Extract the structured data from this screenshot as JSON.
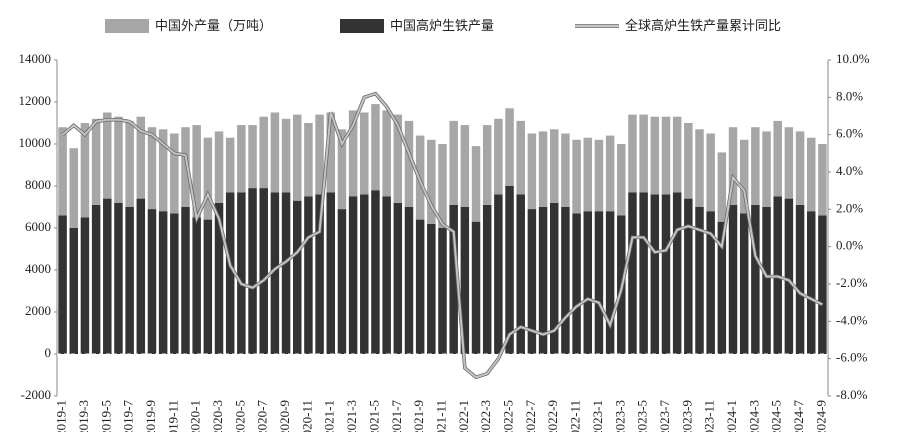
{
  "chart_data": {
    "type": "bar",
    "stacked": true,
    "categories": [
      "2019-1",
      null,
      "2019-3",
      null,
      "2019-5",
      null,
      "2019-7",
      null,
      "2019-9",
      null,
      "2019-11",
      null,
      "2020-1",
      null,
      "2020-3",
      null,
      "2020-5",
      null,
      "2020-7",
      null,
      "2020-9",
      null,
      "2020-11",
      null,
      "2021-1",
      null,
      "2021-3",
      null,
      "2021-5",
      null,
      "2021-7",
      null,
      "2021-9",
      null,
      "2021-11",
      null,
      "2022-1",
      null,
      "2022-3",
      null,
      "2022-5",
      null,
      "2022-7",
      null,
      "2022-9",
      null,
      "2022-11",
      null,
      "2023-1",
      null,
      "2023-3",
      null,
      "2023-5",
      null,
      "2023-7",
      null,
      "2023-9",
      null,
      "2023-11",
      null,
      "2024-1",
      null,
      "2024-3",
      null,
      "2024-5",
      null,
      "2024-7",
      null,
      "2024-9"
    ],
    "series": [
      {
        "name": "中国外产量（万吨）",
        "color": "#a6a6a6",
        "type": "bar",
        "values": [
          4200,
          3800,
          4500,
          4100,
          4100,
          4100,
          4100,
          3900,
          3900,
          3900,
          3800,
          3800,
          4400,
          3900,
          3400,
          2600,
          3200,
          3000,
          3400,
          3800,
          3500,
          4100,
          3500,
          3800,
          3800,
          3800,
          4100,
          3900,
          4100,
          4100,
          4200,
          4100,
          4000,
          4000,
          4000,
          4000,
          3900,
          3600,
          3800,
          3600,
          3700,
          3500,
          3600,
          3600,
          3500,
          3500,
          3500,
          3500,
          3400,
          3600,
          3400,
          3700,
          3700,
          3700,
          3700,
          3600,
          3600,
          3700,
          3700,
          3300,
          3700,
          3500,
          3700,
          3600,
          3600,
          3400,
          3500,
          3500,
          3400
        ]
      },
      {
        "name": "中国高炉生铁产量",
        "color": "#333333",
        "type": "bar",
        "values": [
          6600,
          6000,
          6500,
          7100,
          7400,
          7200,
          7000,
          7400,
          6900,
          6800,
          6700,
          7000,
          6500,
          6400,
          7200,
          7700,
          7700,
          7900,
          7900,
          7700,
          7700,
          7300,
          7500,
          7600,
          7700,
          6900,
          7500,
          7600,
          7800,
          7500,
          7200,
          7000,
          6400,
          6200,
          6000,
          7100,
          7000,
          6300,
          7100,
          7600,
          8000,
          7600,
          6900,
          7000,
          7200,
          7000,
          6700,
          6800,
          6800,
          6800,
          6600,
          7700,
          7700,
          7600,
          7600,
          7700,
          7400,
          7000,
          6800,
          6300,
          7100,
          6700,
          7100,
          7000,
          7500,
          7400,
          7100,
          6800,
          6600
        ]
      },
      {
        "name": "全球高炉生铁产量累计同比",
        "color": "#c4c4c4",
        "type": "line",
        "axis": "y2",
        "values": [
          6.0,
          6.5,
          6.0,
          6.7,
          6.8,
          6.8,
          6.7,
          6.2,
          6.0,
          5.5,
          5.0,
          4.9,
          1.5,
          2.8,
          1.5,
          -1.0,
          -2.0,
          -2.2,
          -1.8,
          -1.2,
          -0.8,
          -0.3,
          0.5,
          0.8,
          7.2,
          5.5,
          6.5,
          8.0,
          8.2,
          7.5,
          6.5,
          5.0,
          3.5,
          2.2,
          1.2,
          0.8,
          -6.5,
          -7.0,
          -6.8,
          -6.0,
          -4.7,
          -4.3,
          -4.5,
          -4.7,
          -4.5,
          -3.8,
          -3.2,
          -2.8,
          -3.0,
          -4.2,
          -2.3,
          0.5,
          0.5,
          -0.3,
          -0.2,
          0.9,
          1.1,
          0.9,
          0.7,
          0.0,
          3.7,
          3.0,
          -0.5,
          -1.6,
          -1.6,
          -1.8,
          -2.5,
          -2.8,
          -3.1
        ]
      }
    ],
    "ylim": [
      -2000,
      14000
    ],
    "yticks": [
      -2000,
      0,
      2000,
      4000,
      6000,
      8000,
      10000,
      12000,
      14000
    ],
    "y2lim": [
      -8,
      10
    ],
    "y2ticks": [
      {
        "value": -8,
        "label": "-8.0%"
      },
      {
        "value": -6,
        "label": "-6.0%"
      },
      {
        "value": -4,
        "label": "-4.0%"
      },
      {
        "value": -2,
        "label": "-2.0%"
      },
      {
        "value": 0,
        "label": "0.0%"
      },
      {
        "value": 2,
        "label": "2.0%"
      },
      {
        "value": 4,
        "label": "4.0%"
      },
      {
        "value": 6,
        "label": "6.0%"
      },
      {
        "value": 8,
        "label": "8.0%"
      },
      {
        "value": 10,
        "label": "10.0%"
      }
    ],
    "legend": "top"
  }
}
